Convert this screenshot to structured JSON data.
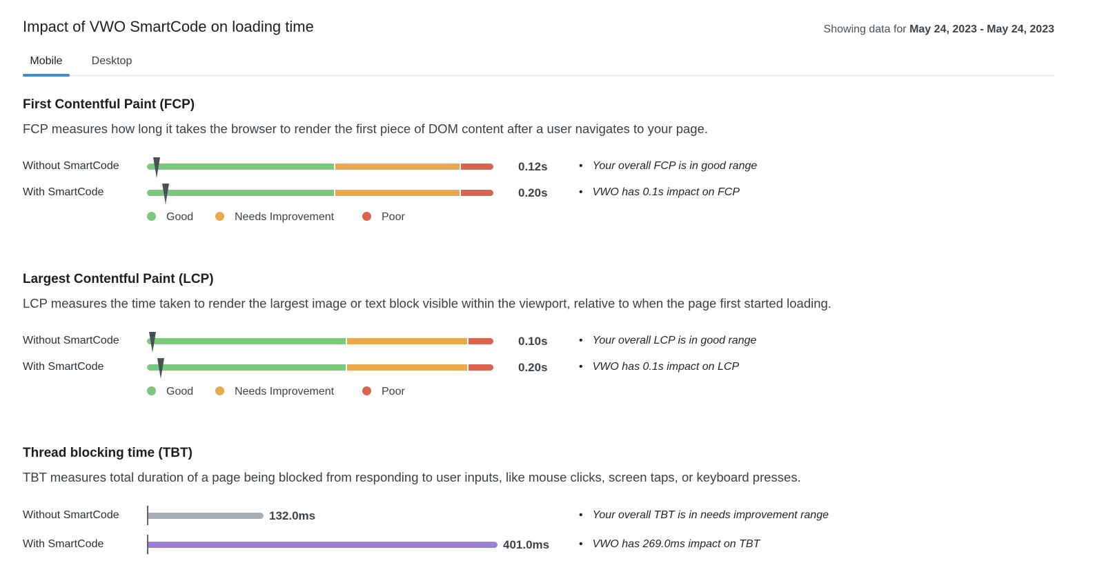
{
  "header": {
    "title": "Impact of VWO SmartCode on loading time",
    "showing_prefix": "Showing data for ",
    "date_range": "May 24, 2023 - May 24, 2023"
  },
  "tabs": [
    {
      "label": "Mobile",
      "active": true
    },
    {
      "label": "Desktop",
      "active": false
    }
  ],
  "legend": {
    "good": "Good",
    "needs_improvement": "Needs Improvement",
    "poor": "Poor"
  },
  "colors": {
    "good": "#7ac97c",
    "needs_improvement": "#e9a94c",
    "poor": "#dc6350",
    "tbt_without": "#a9afb6",
    "tbt_with": "#9a7fd6",
    "tab_accent": "#3d8bd8"
  },
  "fcp": {
    "title": "First Contentful Paint (FCP)",
    "description": "FCP measures how long it takes the browser to render the first piece of DOM content after a user navigates to your page.",
    "rows": [
      {
        "label": "Without SmartCode",
        "value": "0.12s",
        "marker_fraction": 0.02,
        "note": "Your overall FCP is in good range"
      },
      {
        "label": "With SmartCode",
        "value": "0.20s",
        "marker_fraction": 0.045,
        "note": "VWO has 0.1s impact on FCP"
      }
    ]
  },
  "lcp": {
    "title": "Largest Contentful Paint (LCP)",
    "description": "LCP measures the time taken to render the largest image or text block visible within the viewport, relative to when the page first started loading.",
    "rows": [
      {
        "label": "Without SmartCode",
        "value": "0.10s",
        "marker_fraction": 0.008,
        "note": "Your overall LCP is in good range"
      },
      {
        "label": "With SmartCode",
        "value": "0.20s",
        "marker_fraction": 0.031,
        "note": "VWO has 0.1s impact on LCP"
      }
    ]
  },
  "tbt": {
    "title": "Thread blocking time (TBT)",
    "description": "TBT measures total duration of a page being blocked from responding to user inputs, like mouse clicks, screen taps, or keyboard presses.",
    "rows": [
      {
        "label": "Without SmartCode",
        "value": "132.0ms",
        "ms": 132.0,
        "note": "Your overall TBT is in needs improvement range"
      },
      {
        "label": "With SmartCode",
        "value": "401.0ms",
        "ms": 401.0,
        "note": "VWO has 269.0ms impact on TBT"
      }
    ]
  }
}
